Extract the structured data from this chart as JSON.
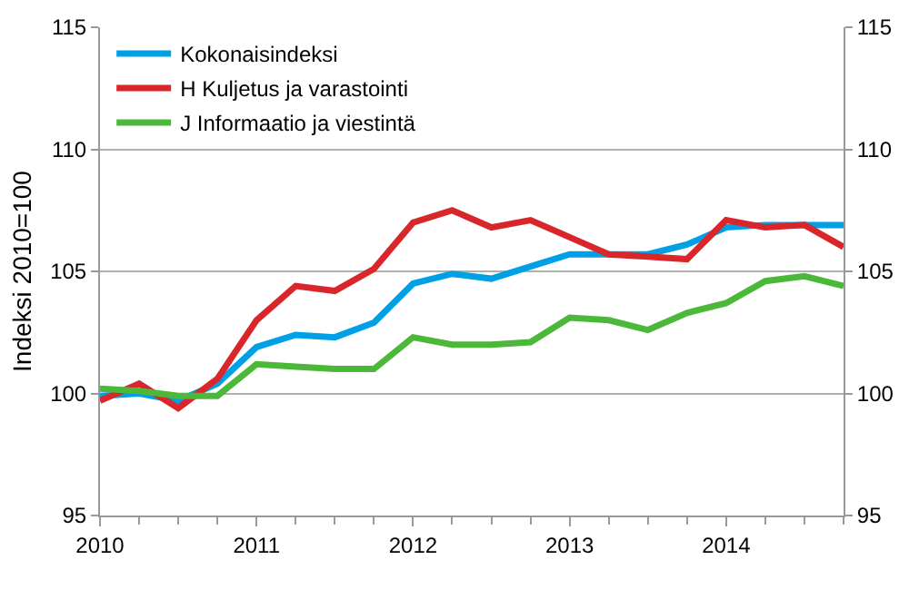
{
  "chart_data": {
    "type": "line",
    "ylabel": "Indeksi 2010=100",
    "x": [
      2010,
      2010.25,
      2010.5,
      2010.75,
      2011,
      2011.25,
      2011.5,
      2011.75,
      2012,
      2012.25,
      2012.5,
      2012.75,
      2013,
      2013.25,
      2013.5,
      2013.75,
      2014,
      2014.25,
      2014.5,
      2014.75
    ],
    "series": [
      {
        "name": "Kokonaisindeksi",
        "color": "#00a0e6",
        "values": [
          99.9,
          100.0,
          99.7,
          100.4,
          101.9,
          102.4,
          102.3,
          102.9,
          104.5,
          104.9,
          104.7,
          105.2,
          105.7,
          105.7,
          105.7,
          106.1,
          106.8,
          106.9,
          106.9,
          106.9
        ]
      },
      {
        "name": "H Kuljetus ja varastointi",
        "color": "#d9262b",
        "values": [
          99.7,
          100.4,
          99.4,
          100.6,
          103.0,
          104.4,
          104.2,
          105.1,
          107.0,
          107.5,
          106.8,
          107.1,
          106.4,
          105.7,
          105.6,
          105.5,
          107.1,
          106.8,
          106.9,
          106.0
        ]
      },
      {
        "name": "J Informaatio ja viestintä",
        "color": "#4cb83a",
        "values": [
          100.2,
          100.1,
          99.9,
          99.9,
          101.2,
          101.1,
          101.0,
          101.0,
          102.3,
          102.0,
          102.0,
          102.1,
          103.1,
          103.0,
          102.6,
          103.3,
          103.7,
          104.6,
          104.8,
          104.4
        ]
      }
    ],
    "xlim": [
      2010,
      2014.75
    ],
    "xticks": [
      2010,
      2011,
      2012,
      2013,
      2014
    ],
    "ylim": [
      95,
      115
    ],
    "yticks": [
      95,
      100,
      105,
      110,
      115
    ],
    "y2lim": [
      95,
      115
    ],
    "y2ticks": [
      95,
      100,
      105,
      110,
      115
    ],
    "grid": "y",
    "legend": "top left",
    "marker": "none",
    "line_style": "solid"
  }
}
